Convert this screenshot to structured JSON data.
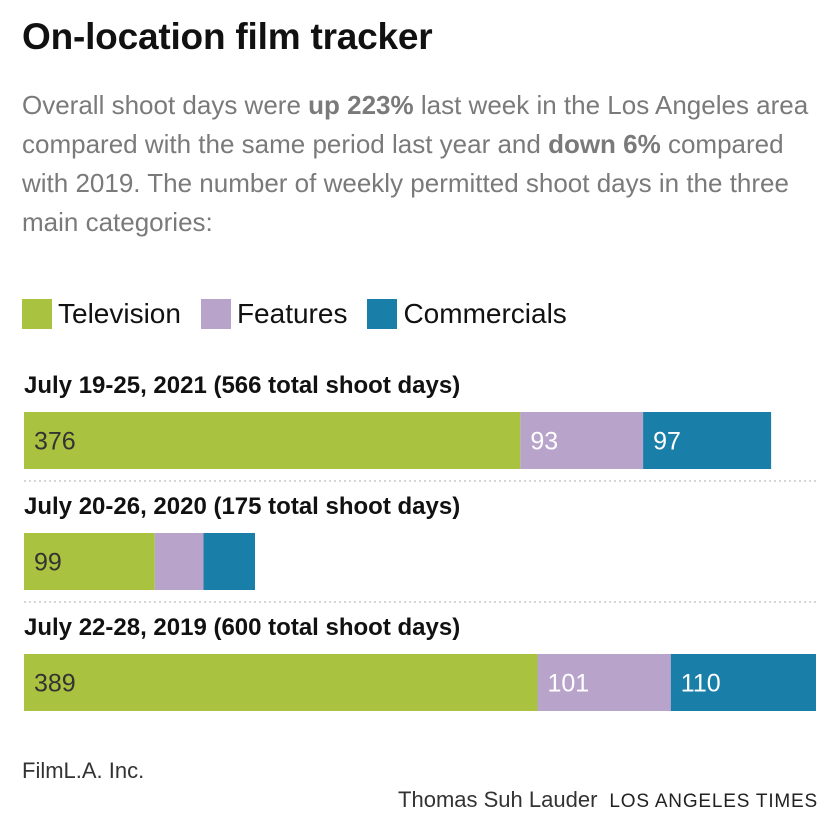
{
  "header": {
    "title": "On-location film tracker",
    "subtitle_parts": [
      {
        "text": "Overall shoot days were ",
        "bold": false
      },
      {
        "text": "up 223%",
        "bold": true
      },
      {
        "text": " last week in the Los Angeles area compared with the same period last year and ",
        "bold": false
      },
      {
        "text": "down 6%",
        "bold": true
      },
      {
        "text": " compared with 2019. The number of weekly permitted shoot days in the three main categories:",
        "bold": false
      }
    ]
  },
  "legend": [
    {
      "label": "Television",
      "color": "#a9c23f"
    },
    {
      "label": "Features",
      "color": "#b8a3cb"
    },
    {
      "label": "Commercials",
      "color": "#1a7fa8"
    }
  ],
  "chart_data": {
    "type": "bar",
    "orientation": "horizontal",
    "stacked": true,
    "categories": [
      "July 19-25, 2021 (566 total shoot days)",
      "July 20-26, 2020 (175 total shoot days)",
      "July 22-28, 2019 (600 total shoot days)"
    ],
    "series": [
      {
        "name": "Television",
        "color": "#a9c23f",
        "values": [
          376,
          99,
          389
        ],
        "labels": [
          "376",
          "99",
          "389"
        ]
      },
      {
        "name": "Features",
        "color": "#b8a3cb",
        "values": [
          93,
          37,
          101
        ],
        "labels": [
          "93",
          "",
          "101"
        ]
      },
      {
        "name": "Commercials",
        "color": "#1a7fa8",
        "values": [
          97,
          39,
          110
        ],
        "labels": [
          "97",
          "",
          "110"
        ]
      }
    ],
    "xlim": [
      0,
      600
    ],
    "grid": false,
    "legend_position": "top"
  },
  "footer": {
    "source": "FilmL.A. Inc.",
    "byline": "Thomas Suh Lauder",
    "outlet": "LOS ANGELES TIMES"
  }
}
